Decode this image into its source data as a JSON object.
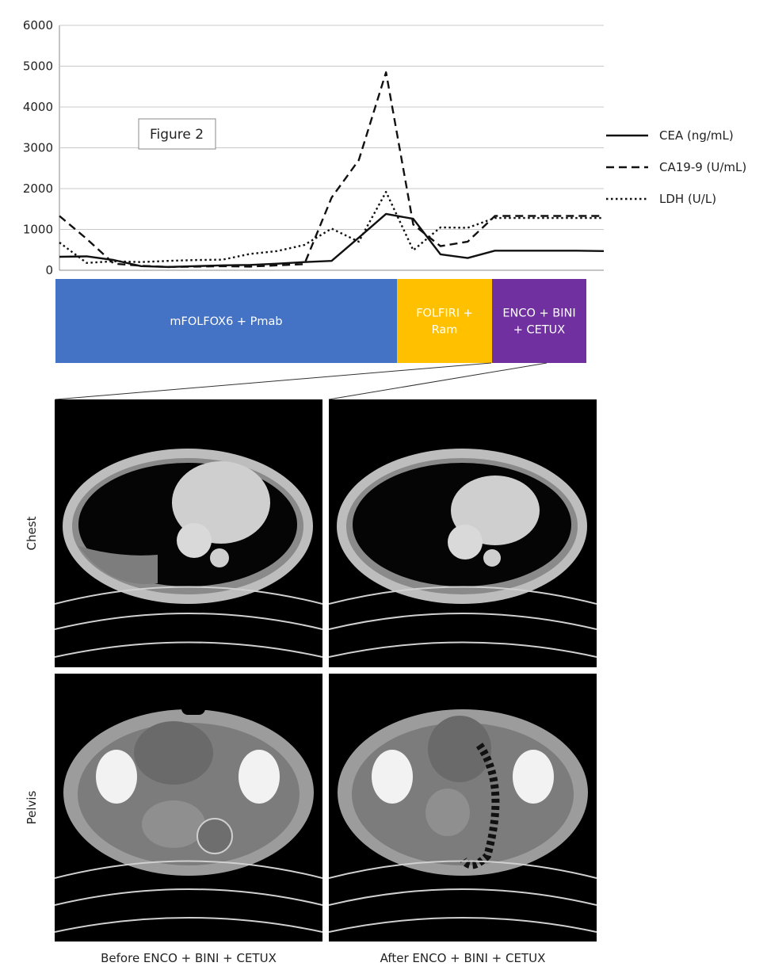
{
  "figure_label": "Figure 2",
  "chart_data": {
    "type": "line",
    "ylim": [
      0,
      6000
    ],
    "yticks": [
      0,
      1000,
      2000,
      3000,
      4000,
      5000,
      6000
    ],
    "grid": true,
    "legend_position": "right",
    "x": [
      0,
      1,
      2,
      3,
      4,
      5,
      6,
      7,
      8,
      9,
      10,
      11,
      12,
      13,
      14,
      15,
      16,
      17,
      18,
      19,
      20
    ],
    "series": [
      {
        "name": "CEA (ng/mL)",
        "style": "solid",
        "values": [
          330,
          340,
          250,
          100,
          80,
          100,
          120,
          130,
          160,
          200,
          230,
          800,
          1380,
          1260,
          390,
          300,
          480,
          480,
          480,
          480,
          470
        ]
      },
      {
        "name": "CA19-9 (U/mL)",
        "style": "dashed",
        "values": [
          1330,
          770,
          160,
          110,
          80,
          90,
          100,
          90,
          120,
          150,
          1780,
          2700,
          4850,
          1120,
          590,
          700,
          1330,
          1330,
          1330,
          1330,
          1330
        ]
      },
      {
        "name": "LDH (U/L)",
        "style": "dotted",
        "values": [
          680,
          180,
          220,
          200,
          230,
          250,
          260,
          400,
          470,
          620,
          1020,
          700,
          1920,
          490,
          1050,
          1040,
          1280,
          1280,
          1280,
          1280,
          1280
        ]
      }
    ]
  },
  "regimens": [
    {
      "label": "mFOLFOX6 + Pmab",
      "color": "#4472C4"
    },
    {
      "label": "FOLFIRI + Ram",
      "color": "#FFC000"
    },
    {
      "label": "ENCO + BINI + CETUX",
      "color": "#7030A0"
    }
  ],
  "rows": [
    "Chest",
    "Pelvis"
  ],
  "columns": [
    "Before ENCO + BINI + CETUX",
    "After ENCO + BINI + CETUX"
  ]
}
